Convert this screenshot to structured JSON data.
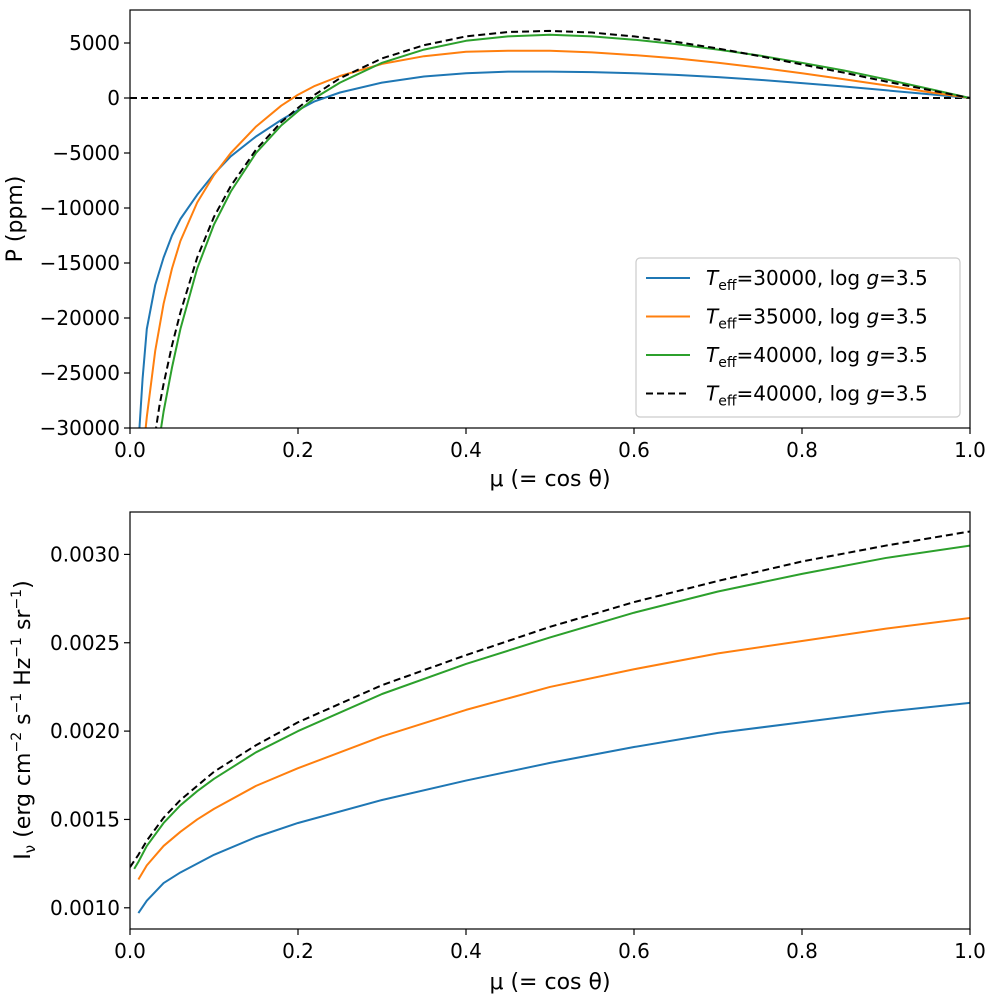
{
  "chart_data": [
    {
      "type": "line",
      "panel": "top",
      "xlabel": "μ (= cos θ)",
      "ylabel": "P (ppm)",
      "xlim": [
        0.0,
        1.0
      ],
      "ylim": [
        -30000,
        8000
      ],
      "xticks": [
        0.0,
        0.2,
        0.4,
        0.6,
        0.8,
        1.0
      ],
      "xtick_labels": [
        "0.0",
        "0.2",
        "0.4",
        "0.6",
        "0.8",
        "1.0"
      ],
      "yticks": [
        -30000,
        -25000,
        -20000,
        -15000,
        -10000,
        -5000,
        0,
        5000
      ],
      "ytick_labels": [
        "−30000",
        "−25000",
        "−20000",
        "−15000",
        "−10000",
        "−5000",
        "0",
        "5000"
      ],
      "hline": {
        "y": 0,
        "style": "dashed",
        "color": "#000000"
      },
      "legend": {
        "placement": "lower-right",
        "entries": [
          {
            "teff": "30000",
            "logg": "3.5",
            "color": "#1f77b4",
            "style": "solid"
          },
          {
            "teff": "35000",
            "logg": "3.5",
            "color": "#ff7f0e",
            "style": "solid"
          },
          {
            "teff": "40000",
            "logg": "3.5",
            "color": "#2ca02c",
            "style": "solid"
          },
          {
            "teff": "40000",
            "logg": "3.5",
            "color": "#000000",
            "style": "dashed"
          }
        ],
        "label_parts": {
          "T": "T",
          "sub": "eff",
          "eq": "=",
          "log": "log",
          "g": "g"
        }
      },
      "series": [
        {
          "name": "Teff=30000, log g=3.5",
          "color": "#1f77b4",
          "style": "solid",
          "x": [
            0.01,
            0.015,
            0.02,
            0.03,
            0.04,
            0.05,
            0.06,
            0.08,
            0.1,
            0.12,
            0.15,
            0.18,
            0.2,
            0.22,
            0.25,
            0.3,
            0.35,
            0.4,
            0.45,
            0.5,
            0.55,
            0.6,
            0.65,
            0.7,
            0.75,
            0.8,
            0.85,
            0.9,
            0.95,
            1.0
          ],
          "y": [
            -31500,
            -25500,
            -21000,
            -17000,
            -14500,
            -12500,
            -11000,
            -8800,
            -6900,
            -5300,
            -3500,
            -2000,
            -1100,
            -300,
            500,
            1400,
            1950,
            2250,
            2400,
            2400,
            2350,
            2250,
            2100,
            1900,
            1650,
            1350,
            1050,
            700,
            350,
            0
          ]
        },
        {
          "name": "Teff=35000, log g=3.5",
          "color": "#ff7f0e",
          "style": "solid",
          "x": [
            0.018,
            0.02,
            0.03,
            0.04,
            0.05,
            0.06,
            0.08,
            0.1,
            0.12,
            0.15,
            0.18,
            0.2,
            0.22,
            0.25,
            0.3,
            0.35,
            0.4,
            0.45,
            0.5,
            0.55,
            0.6,
            0.65,
            0.7,
            0.75,
            0.8,
            0.85,
            0.9,
            0.95,
            1.0
          ],
          "y": [
            -30500,
            -29000,
            -23000,
            -18700,
            -15500,
            -13000,
            -9500,
            -7000,
            -5000,
            -2600,
            -700,
            300,
            1100,
            2000,
            3100,
            3800,
            4200,
            4300,
            4300,
            4150,
            3900,
            3600,
            3200,
            2750,
            2250,
            1700,
            1150,
            550,
            0
          ]
        },
        {
          "name": "Teff=40000, log g=3.5",
          "color": "#2ca02c",
          "style": "solid",
          "x": [
            0.036,
            0.04,
            0.05,
            0.06,
            0.08,
            0.1,
            0.12,
            0.15,
            0.18,
            0.2,
            0.22,
            0.25,
            0.3,
            0.35,
            0.4,
            0.45,
            0.5,
            0.55,
            0.6,
            0.65,
            0.7,
            0.75,
            0.8,
            0.85,
            0.9,
            0.95,
            1.0
          ],
          "y": [
            -30500,
            -28500,
            -24500,
            -21000,
            -15500,
            -11500,
            -8500,
            -5000,
            -2500,
            -1200,
            0,
            1400,
            3200,
            4400,
            5200,
            5600,
            5750,
            5600,
            5300,
            4900,
            4400,
            3850,
            3200,
            2500,
            1700,
            850,
            0
          ]
        },
        {
          "name": "Teff=40000, log g=3.5 (dashed)",
          "color": "#000000",
          "style": "dashed",
          "x": [
            0.03,
            0.035,
            0.04,
            0.05,
            0.06,
            0.08,
            0.1,
            0.12,
            0.15,
            0.18,
            0.2,
            0.22,
            0.25,
            0.3,
            0.35,
            0.4,
            0.45,
            0.5,
            0.55,
            0.6,
            0.65,
            0.7,
            0.75,
            0.8,
            0.85,
            0.9,
            0.95,
            1.0
          ],
          "y": [
            -30500,
            -28000,
            -26000,
            -22500,
            -19500,
            -14500,
            -10800,
            -8000,
            -4700,
            -2200,
            -900,
            300,
            1800,
            3600,
            4800,
            5600,
            6000,
            6100,
            5950,
            5600,
            5100,
            4500,
            3800,
            3050,
            2300,
            1500,
            750,
            0
          ]
        }
      ]
    },
    {
      "type": "line",
      "panel": "bottom",
      "xlabel": "μ (= cos θ)",
      "ylabel": {
        "main": "I",
        "sub": "ν",
        "rest": " (erg cm",
        "e1": "−2",
        "s": " s",
        "e2": "−1",
        "hz": " Hz",
        "e3": "−1",
        "sr": " sr",
        "e4": "−1",
        "close": ")"
      },
      "xlim": [
        0.0,
        1.0
      ],
      "ylim": [
        0.00088,
        0.00324
      ],
      "xticks": [
        0.0,
        0.2,
        0.4,
        0.6,
        0.8,
        1.0
      ],
      "xtick_labels": [
        "0.0",
        "0.2",
        "0.4",
        "0.6",
        "0.8",
        "1.0"
      ],
      "yticks": [
        0.001,
        0.0015,
        0.002,
        0.0025,
        0.003
      ],
      "ytick_labels": [
        "0.0010",
        "0.0015",
        "0.0020",
        "0.0025",
        "0.0030"
      ],
      "series": [
        {
          "name": "Teff=30000, log g=3.5",
          "color": "#1f77b4",
          "style": "solid",
          "x": [
            0.01,
            0.02,
            0.04,
            0.06,
            0.08,
            0.1,
            0.15,
            0.2,
            0.3,
            0.4,
            0.5,
            0.6,
            0.7,
            0.8,
            0.9,
            1.0
          ],
          "y": [
            0.00097,
            0.00104,
            0.00114,
            0.0012,
            0.00125,
            0.0013,
            0.0014,
            0.00148,
            0.00161,
            0.00172,
            0.00182,
            0.00191,
            0.00199,
            0.00205,
            0.00211,
            0.00216
          ]
        },
        {
          "name": "Teff=35000, log g=3.5",
          "color": "#ff7f0e",
          "style": "solid",
          "x": [
            0.01,
            0.02,
            0.04,
            0.06,
            0.08,
            0.1,
            0.15,
            0.2,
            0.3,
            0.4,
            0.5,
            0.6,
            0.7,
            0.8,
            0.9,
            1.0
          ],
          "y": [
            0.00116,
            0.00124,
            0.00135,
            0.00143,
            0.0015,
            0.00156,
            0.00169,
            0.00179,
            0.00197,
            0.00212,
            0.00225,
            0.00235,
            0.00244,
            0.00251,
            0.00258,
            0.00264
          ]
        },
        {
          "name": "Teff=40000, log g=3.5",
          "color": "#2ca02c",
          "style": "solid",
          "x": [
            0.005,
            0.01,
            0.02,
            0.04,
            0.06,
            0.08,
            0.1,
            0.15,
            0.2,
            0.3,
            0.4,
            0.5,
            0.6,
            0.7,
            0.8,
            0.9,
            1.0
          ],
          "y": [
            0.00122,
            0.00126,
            0.00135,
            0.00148,
            0.00158,
            0.00166,
            0.00173,
            0.00188,
            0.002,
            0.00221,
            0.00238,
            0.00253,
            0.00267,
            0.00279,
            0.00289,
            0.00298,
            0.00305
          ]
        },
        {
          "name": "Teff=40000, log g=3.5 (dashed)",
          "color": "#000000",
          "style": "dashed",
          "x": [
            0.0,
            0.01,
            0.02,
            0.04,
            0.06,
            0.08,
            0.1,
            0.15,
            0.2,
            0.3,
            0.4,
            0.5,
            0.6,
            0.7,
            0.8,
            0.9,
            1.0
          ],
          "y": [
            0.00123,
            0.0013,
            0.00138,
            0.00151,
            0.00161,
            0.00169,
            0.00177,
            0.00192,
            0.00205,
            0.00226,
            0.00243,
            0.00259,
            0.00273,
            0.00285,
            0.00296,
            0.00305,
            0.00313
          ]
        }
      ]
    }
  ]
}
